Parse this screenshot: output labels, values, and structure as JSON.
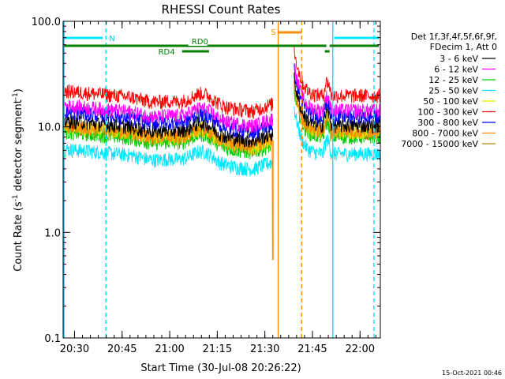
{
  "chart_data": {
    "type": "line",
    "title": "RHESSI Count Rates",
    "xlabel": "Start Time (30-Jul-08 20:26:22)",
    "ylabel_main": "Count Rate (s",
    "ylabel_sup1": "-1",
    "ylabel_mid": " detector segment",
    "ylabel_sup2": "-1",
    "ylabel_end": ")",
    "y_scale": "log",
    "ylim": [
      0.1,
      100.0
    ],
    "xlim_minutes": [
      0,
      100
    ],
    "x_ticks": [
      {
        "label": "20:30",
        "minute": 3.6
      },
      {
        "label": "20:45",
        "minute": 18.6
      },
      {
        "label": "21:00",
        "minute": 33.6
      },
      {
        "label": "21:15",
        "minute": 48.6
      },
      {
        "label": "21:30",
        "minute": 63.6
      },
      {
        "label": "21:45",
        "minute": 78.6
      },
      {
        "label": "22:00",
        "minute": 93.6
      }
    ],
    "y_ticks": [
      {
        "label": "0.1",
        "value": 0.1
      },
      {
        "label": "1.0",
        "value": 1.0
      },
      {
        "label": "10.0",
        "value": 10.0
      },
      {
        "label": "100.0",
        "value": 100.0
      }
    ],
    "legend_header": [
      "Det 1f,3f,4f,5f,6f,9f,",
      "FDecim 1, Att 0"
    ],
    "legend_position": "right-outside",
    "series": [
      {
        "name": "3 - 6 keV",
        "color": "#000000",
        "level": 11.5
      },
      {
        "name": "6 - 12 keV",
        "color": "#ff00ff",
        "level": 16.0
      },
      {
        "name": "12 - 25 keV",
        "color": "#00cc00",
        "level": 9.0
      },
      {
        "name": "25 - 50 keV",
        "color": "#00e5ff",
        "level": 6.2
      },
      {
        "name": "50 - 100 keV",
        "color": "#e5e500",
        "level": 10.0
      },
      {
        "name": "100 - 300 keV",
        "color": "#ff0000",
        "level": 22.0
      },
      {
        "name": "300 - 800 keV",
        "color": "#0000ff",
        "level": 14.0
      },
      {
        "name": "800 - 7000 keV",
        "color": "#ff8c00",
        "level": 10.2
      },
      {
        "name": "7000 - 15000 keV",
        "color": "#b8860b",
        "level": 9.8
      }
    ],
    "flag_labels": {
      "n": "N",
      "s": "S",
      "rd0": "RD0",
      "rd4": "RD4"
    },
    "vertical_lines": [
      {
        "minute": 0.3,
        "color": "#00e5ff",
        "style": "solid"
      },
      {
        "minute": 13.5,
        "color": "#00e5ff",
        "style": "dashed"
      },
      {
        "minute": 67.8,
        "color": "#ff8c00",
        "style": "solid"
      },
      {
        "minute": 75.2,
        "color": "#ff8c00",
        "style": "dashed"
      },
      {
        "minute": 85.0,
        "color": "#00e5ff",
        "style": "solid"
      },
      {
        "minute": 98.0,
        "color": "#00e5ff",
        "style": "dashed"
      }
    ],
    "gap_minutes": [
      66.2,
      72.8
    ],
    "timestamp": "15-Oct-2021 00:46"
  }
}
